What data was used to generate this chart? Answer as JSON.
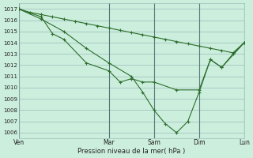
{
  "background_color": "#cceedd",
  "grid_color": "#99bbbb",
  "line_color": "#2d6e2d",
  "marker": "+",
  "xlim": [
    0,
    120
  ],
  "ylim": [
    1005.5,
    1017.5
  ],
  "yticks": [
    1006,
    1007,
    1008,
    1009,
    1010,
    1011,
    1012,
    1013,
    1014,
    1015,
    1016,
    1017
  ],
  "xtick_positions": [
    0,
    48,
    72,
    96,
    120
  ],
  "xtick_labels": [
    "Ven",
    "Mar",
    "Sam",
    "Dim",
    "Lun"
  ],
  "xlabel": "Pression niveau de la mer( hPa )",
  "vlines": [
    0,
    48,
    72,
    96,
    120
  ],
  "series": [
    {
      "x": [
        0,
        12,
        24,
        36,
        48,
        60,
        66,
        72,
        78,
        84,
        90,
        96,
        102,
        108,
        114,
        120
      ],
      "y": [
        1017,
        1016.1,
        1015.0,
        1013.5,
        1012.2,
        1011.0,
        1009.6,
        1008.0,
        1006.8,
        1006.0,
        1007.0,
        1009.6,
        1012.5,
        1011.8,
        1013.0,
        1014.0
      ]
    },
    {
      "x": [
        0,
        12,
        18,
        24,
        36,
        48,
        54,
        60,
        66,
        72,
        84,
        96,
        102,
        108,
        120
      ],
      "y": [
        1017,
        1016.3,
        1014.8,
        1014.3,
        1012.2,
        1011.5,
        1010.5,
        1010.8,
        1010.5,
        1010.5,
        1009.8,
        1009.8,
        1012.5,
        1011.8,
        1014.0
      ]
    },
    {
      "x": [
        0,
        6,
        12,
        18,
        24,
        30,
        36,
        42,
        48,
        54,
        60,
        66,
        72,
        78,
        84,
        90,
        96,
        102,
        108,
        114,
        120
      ],
      "y": [
        1017,
        1016.7,
        1016.5,
        1016.3,
        1016.1,
        1015.9,
        1015.7,
        1015.5,
        1015.3,
        1015.1,
        1014.9,
        1014.7,
        1014.5,
        1014.3,
        1014.1,
        1013.9,
        1013.7,
        1013.5,
        1013.3,
        1013.1,
        1014.0
      ]
    }
  ]
}
